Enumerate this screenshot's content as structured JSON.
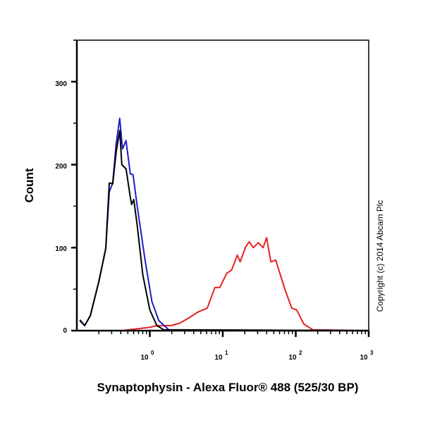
{
  "chart_data": {
    "type": "line",
    "title": "",
    "xlabel": "Synaptophysin  - Alexa Fluor® 488 (525/30 BP)",
    "ylabel": "Count",
    "x_scale": "log",
    "xlim": [
      0.1,
      1000
    ],
    "ylim": [
      0,
      350
    ],
    "x_ticks": [
      1,
      10,
      100,
      1000
    ],
    "x_tick_labels": [
      {
        "base": "10",
        "exp": "0"
      },
      {
        "base": "10",
        "exp": "1"
      },
      {
        "base": "10",
        "exp": "2"
      },
      {
        "base": "10",
        "exp": "3"
      }
    ],
    "y_ticks": [
      0,
      100,
      200,
      300
    ],
    "y_tick_labels": [
      "0",
      "100",
      "200",
      "300"
    ],
    "grid": false,
    "legend": "none",
    "annotation": "Copyright (c) 2014 Abcam Plc",
    "series": [
      {
        "color": "#e8201c",
        "x": [
          0.1,
          0.41,
          1.0,
          1.25,
          1.94,
          2.58,
          3.52,
          4.69,
          6.11,
          7.79,
          9.1,
          11.3,
          13.2,
          15.8,
          17.3,
          20.6,
          23.0,
          26.2,
          30.6,
          35.7,
          39.9,
          45.6,
          53.2,
          70.8,
          88.3,
          103,
          129,
          171,
          1000
        ],
        "y": [
          0,
          0,
          4,
          6,
          6,
          9,
          16,
          23,
          27,
          52,
          52,
          69,
          73,
          91,
          83,
          101,
          107,
          100,
          106,
          100,
          112,
          83,
          85,
          50,
          27,
          25,
          8,
          1,
          0
        ]
      },
      {
        "color": "#1c1ccc",
        "x": [
          0.11,
          0.128,
          0.153,
          0.2,
          0.249,
          0.278,
          0.31,
          0.347,
          0.387,
          0.423,
          0.472,
          0.54,
          0.589,
          0.672,
          0.857,
          1.07,
          1.33,
          1.82,
          1000
        ],
        "y": [
          12,
          6,
          18,
          59,
          99,
          167,
          178,
          226,
          256,
          219,
          229,
          189,
          188,
          150,
          86,
          35,
          12,
          1,
          0
        ]
      },
      {
        "color": "#000000",
        "x": [
          0.11,
          0.128,
          0.153,
          0.2,
          0.249,
          0.278,
          0.31,
          0.347,
          0.387,
          0.413,
          0.472,
          0.54,
          0.563,
          0.602,
          0.672,
          0.802,
          1.0,
          1.25,
          1.56,
          1000
        ],
        "y": [
          13,
          6,
          18,
          59,
          99,
          178,
          177,
          216,
          241,
          200,
          195,
          161,
          152,
          158,
          127,
          67,
          25,
          6,
          1,
          0
        ]
      }
    ]
  }
}
